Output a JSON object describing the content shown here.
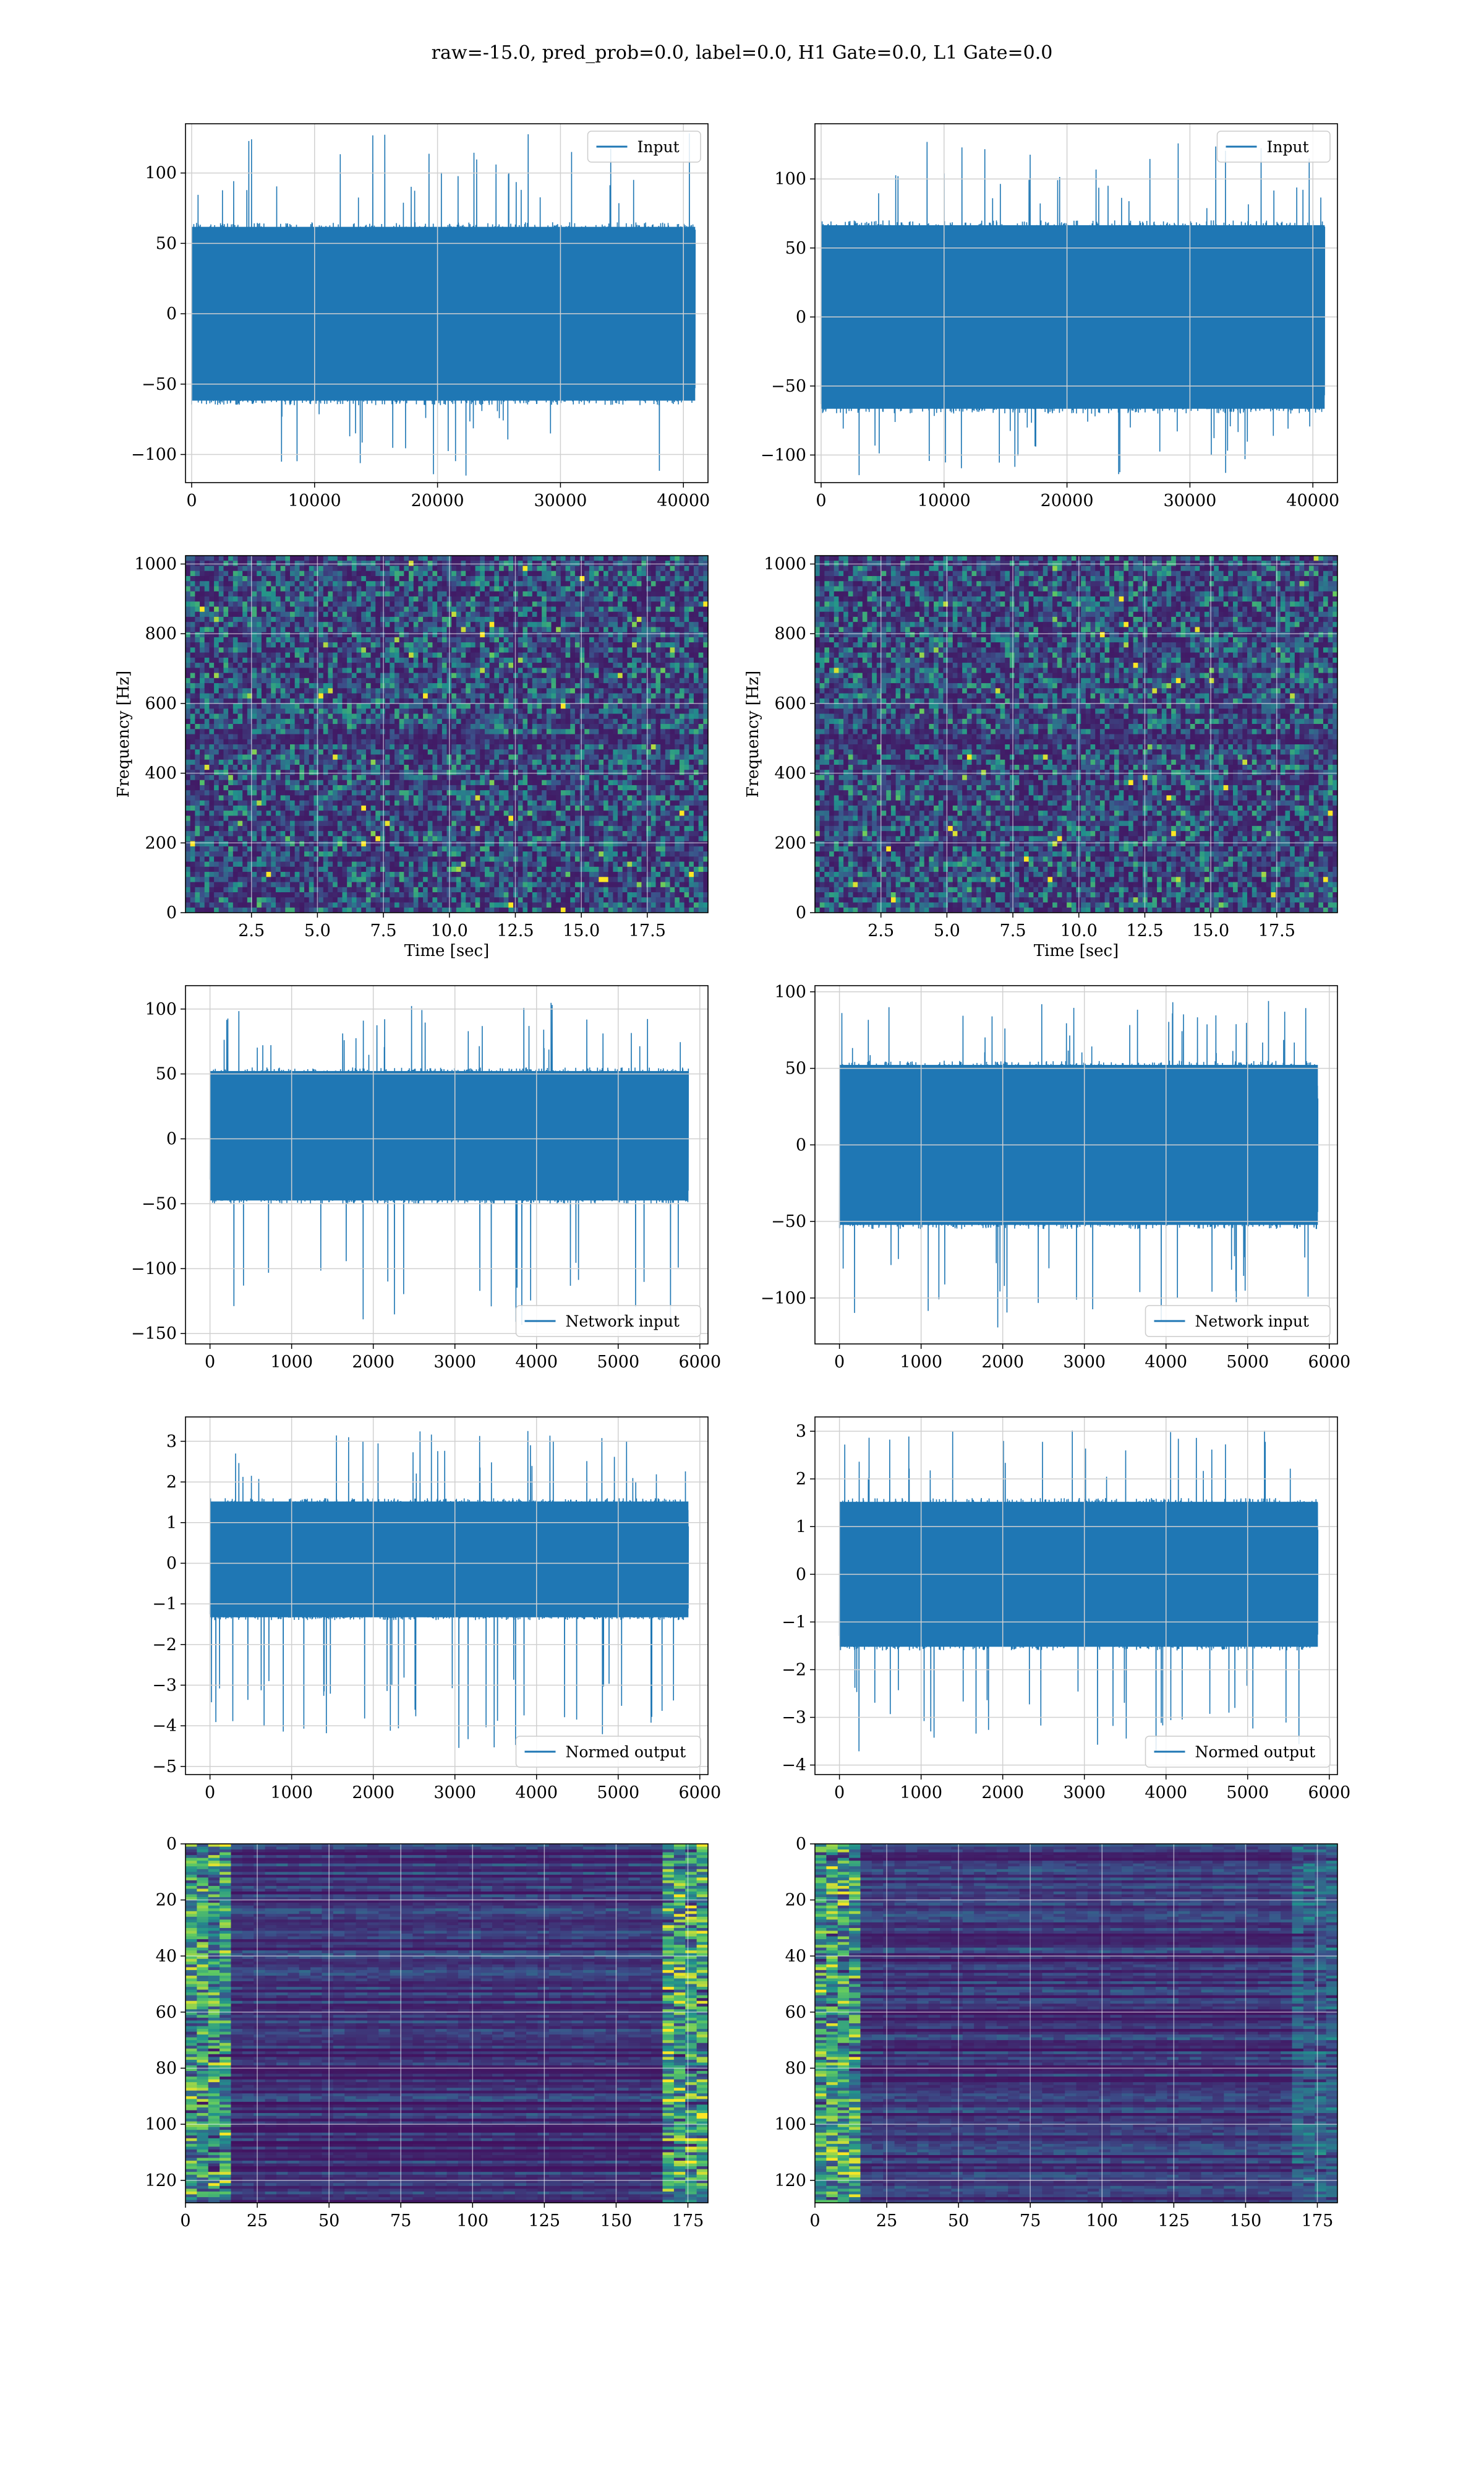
{
  "figure": {
    "title": "raw=-15.0, pred_prob=0.0, label=0.0, H1 Gate=0.0, L1 Gate=0.0"
  },
  "colors": {
    "line": "#1f77b4",
    "grid": "#d0d0d0",
    "viridis_low": "#440154",
    "viridis_mid": "#21918c",
    "viridis_high": "#fde725"
  },
  "chart_data": [
    {
      "type": "line",
      "row": 1,
      "col": 1,
      "legend": "Input",
      "legend_position": "top-right",
      "xlim": [
        -500,
        42000
      ],
      "ylim": [
        -120,
        135
      ],
      "grid": true,
      "xticks": [
        0,
        10000,
        20000,
        30000,
        40000
      ],
      "xtick_labels": [
        "0",
        "10000",
        "20000",
        "30000",
        "40000"
      ],
      "yticks": [
        100,
        50,
        0,
        -50,
        -100
      ],
      "ytick_labels": [
        "100",
        "50",
        "0",
        "−50",
        "−100"
      ],
      "x_range": [
        0,
        40960
      ],
      "band": [
        -65,
        65
      ],
      "spike_range": [
        -115,
        130
      ]
    },
    {
      "type": "line",
      "row": 1,
      "col": 2,
      "legend": "Input",
      "legend_position": "top-right",
      "xlim": [
        -500,
        42000
      ],
      "ylim": [
        -120,
        140
      ],
      "grid": true,
      "xticks": [
        0,
        10000,
        20000,
        30000,
        40000
      ],
      "xtick_labels": [
        "0",
        "10000",
        "20000",
        "30000",
        "40000"
      ],
      "yticks": [
        100,
        50,
        0,
        -50,
        -100
      ],
      "ytick_labels": [
        "100",
        "50",
        "0",
        "−50",
        "−100"
      ],
      "x_range": [
        0,
        40960
      ],
      "band": [
        -70,
        70
      ],
      "spike_range": [
        -115,
        130
      ]
    },
    {
      "type": "heatmap",
      "row": 2,
      "col": 1,
      "kind": "spectrogram",
      "xlim": [
        0,
        19.8
      ],
      "ylim": [
        0,
        1024
      ],
      "grid": true,
      "xlabel": "Time [sec]",
      "ylabel": "Frequency [Hz]",
      "xticks": [
        2.5,
        5.0,
        7.5,
        10.0,
        12.5,
        15.0,
        17.5
      ],
      "xtick_labels": [
        "2.5",
        "5.0",
        "7.5",
        "10.0",
        "12.5",
        "15.0",
        "17.5"
      ],
      "yticks": [
        0,
        200,
        400,
        600,
        800,
        1000
      ],
      "ytick_labels": [
        "0",
        "200",
        "400",
        "600",
        "800",
        "1000"
      ],
      "colormap": "viridis"
    },
    {
      "type": "heatmap",
      "row": 2,
      "col": 2,
      "kind": "spectrogram",
      "xlim": [
        0,
        19.8
      ],
      "ylim": [
        0,
        1024
      ],
      "grid": true,
      "xlabel": "Time [sec]",
      "ylabel": "Frequency [Hz]",
      "xticks": [
        2.5,
        5.0,
        7.5,
        10.0,
        12.5,
        15.0,
        17.5
      ],
      "xtick_labels": [
        "2.5",
        "5.0",
        "7.5",
        "10.0",
        "12.5",
        "15.0",
        "17.5"
      ],
      "yticks": [
        0,
        200,
        400,
        600,
        800,
        1000
      ],
      "ytick_labels": [
        "0",
        "200",
        "400",
        "600",
        "800",
        "1000"
      ],
      "colormap": "viridis"
    },
    {
      "type": "line",
      "row": 3,
      "col": 1,
      "legend": "Network input",
      "legend_position": "bottom-right",
      "xlim": [
        -300,
        6100
      ],
      "ylim": [
        -158,
        118
      ],
      "grid": true,
      "xticks": [
        0,
        1000,
        2000,
        3000,
        4000,
        5000,
        6000
      ],
      "xtick_labels": [
        "0",
        "1000",
        "2000",
        "3000",
        "4000",
        "5000",
        "6000"
      ],
      "yticks": [
        100,
        50,
        0,
        -50,
        -100,
        -150
      ],
      "ytick_labels": [
        "100",
        "50",
        "0",
        "−50",
        "−100",
        "−150"
      ],
      "x_range": [
        0,
        5860
      ],
      "band": [
        -50,
        55
      ],
      "spike_range": [
        -145,
        105
      ]
    },
    {
      "type": "line",
      "row": 3,
      "col": 2,
      "legend": "Network input",
      "legend_position": "bottom-right",
      "xlim": [
        -300,
        6100
      ],
      "ylim": [
        -130,
        104
      ],
      "grid": true,
      "xticks": [
        0,
        1000,
        2000,
        3000,
        4000,
        5000,
        6000
      ],
      "xtick_labels": [
        "0",
        "1000",
        "2000",
        "3000",
        "4000",
        "5000",
        "6000"
      ],
      "yticks": [
        100,
        50,
        0,
        -50,
        -100
      ],
      "ytick_labels": [
        "100",
        "50",
        "0",
        "−50",
        "−100"
      ],
      "x_range": [
        0,
        5860
      ],
      "band": [
        -55,
        55
      ],
      "spike_range": [
        -120,
        97
      ]
    },
    {
      "type": "line",
      "row": 4,
      "col": 1,
      "legend": "Normed output",
      "legend_position": "bottom-right",
      "xlim": [
        -300,
        6100
      ],
      "ylim": [
        -5.2,
        3.6
      ],
      "grid": true,
      "xticks": [
        0,
        1000,
        2000,
        3000,
        4000,
        5000,
        6000
      ],
      "xtick_labels": [
        "0",
        "1000",
        "2000",
        "3000",
        "4000",
        "5000",
        "6000"
      ],
      "yticks": [
        3,
        2,
        1,
        0,
        -1,
        -2,
        -3,
        -4,
        -5
      ],
      "ytick_labels": [
        "3",
        "2",
        "1",
        "0",
        "−1",
        "−2",
        "−3",
        "−4",
        "−5"
      ],
      "x_range": [
        0,
        5860
      ],
      "band": [
        -1.4,
        1.6
      ],
      "spike_range": [
        -4.6,
        3.3
      ]
    },
    {
      "type": "line",
      "row": 4,
      "col": 2,
      "legend": "Normed output",
      "legend_position": "bottom-right",
      "xlim": [
        -300,
        6100
      ],
      "ylim": [
        -4.2,
        3.3
      ],
      "grid": true,
      "xticks": [
        0,
        1000,
        2000,
        3000,
        4000,
        5000,
        6000
      ],
      "xtick_labels": [
        "0",
        "1000",
        "2000",
        "3000",
        "4000",
        "5000",
        "6000"
      ],
      "yticks": [
        3,
        2,
        1,
        0,
        -1,
        -2,
        -3,
        -4
      ],
      "ytick_labels": [
        "3",
        "2",
        "1",
        "0",
        "−1",
        "−2",
        "−3",
        "−4"
      ],
      "x_range": [
        0,
        5860
      ],
      "band": [
        -1.6,
        1.6
      ],
      "spike_range": [
        -3.8,
        3.1
      ]
    },
    {
      "type": "heatmap",
      "row": 5,
      "col": 1,
      "kind": "feature-map",
      "xlim": [
        0,
        182
      ],
      "ylim": [
        128,
        0
      ],
      "grid": true,
      "xticks": [
        0,
        25,
        50,
        75,
        100,
        125,
        150,
        175
      ],
      "xtick_labels": [
        "0",
        "25",
        "50",
        "75",
        "100",
        "125",
        "150",
        "175"
      ],
      "yticks": [
        0,
        20,
        40,
        60,
        80,
        100,
        120
      ],
      "ytick_labels": [
        "0",
        "20",
        "40",
        "60",
        "80",
        "100",
        "120"
      ],
      "colormap": "viridis"
    },
    {
      "type": "heatmap",
      "row": 5,
      "col": 2,
      "kind": "feature-map",
      "xlim": [
        0,
        182
      ],
      "ylim": [
        128,
        0
      ],
      "grid": true,
      "xticks": [
        0,
        25,
        50,
        75,
        100,
        125,
        150,
        175
      ],
      "xtick_labels": [
        "0",
        "25",
        "50",
        "75",
        "100",
        "125",
        "150",
        "175"
      ],
      "yticks": [
        0,
        20,
        40,
        60,
        80,
        100,
        120
      ],
      "ytick_labels": [
        "0",
        "20",
        "40",
        "60",
        "80",
        "100",
        "120"
      ],
      "colormap": "viridis"
    }
  ]
}
